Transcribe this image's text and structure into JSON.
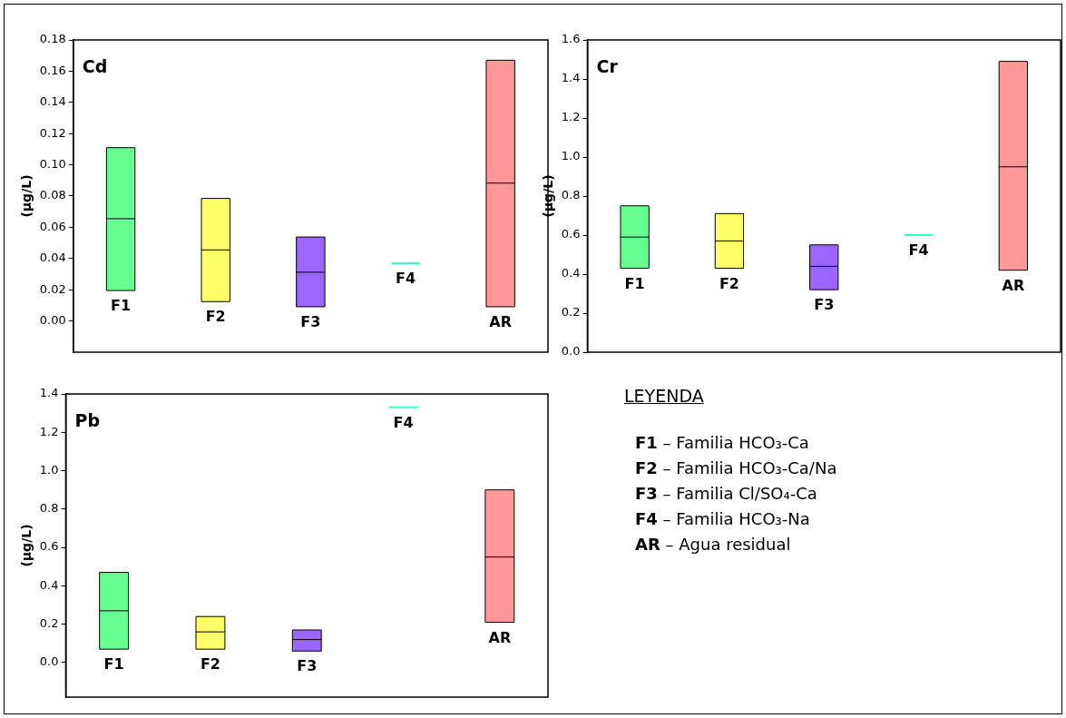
{
  "chart_data": [
    {
      "type": "box",
      "title": "Cd",
      "ylabel": "(µg/L)",
      "categories": [
        "F1",
        "F2",
        "F3",
        "F4",
        "AR"
      ],
      "colors": [
        "#66ff8f",
        "#ffff66",
        "#9966ff",
        "#33ffcc",
        "#ff9999"
      ],
      "boxes": [
        {
          "low": 0.0195,
          "q1": 0.0195,
          "median": 0.0655,
          "q3": 0.111,
          "high": 0.111
        },
        {
          "low": 0.0124,
          "q1": 0.0124,
          "median": 0.0455,
          "q3": 0.0785,
          "high": 0.0785
        },
        {
          "low": 0.0091,
          "q1": 0.0091,
          "median": 0.0312,
          "q3": 0.0538,
          "high": 0.0538
        },
        {
          "low": 0.037,
          "q1": 0.037,
          "median": 0.037,
          "q3": 0.037,
          "high": 0.037
        },
        {
          "low": 0.0091,
          "q1": 0.0091,
          "median": 0.0883,
          "q3": 0.167,
          "high": 0.167
        }
      ],
      "ylim": [
        -0.02,
        0.18
      ],
      "yticks": [
        {
          "value": 0,
          "label": "0.00"
        },
        {
          "value": 0.02,
          "label": "0.02"
        },
        {
          "value": 0.04,
          "label": "0.04"
        },
        {
          "value": 0.06,
          "label": "0.06"
        },
        {
          "value": 0.08,
          "label": "0.08"
        },
        {
          "value": 0.1,
          "label": "0.10"
        },
        {
          "value": 0.12,
          "label": "0.12"
        },
        {
          "value": 0.14,
          "label": "0.14"
        },
        {
          "value": 0.16,
          "label": "0.16"
        },
        {
          "value": 0.18,
          "label": "0.18"
        }
      ],
      "tick_labels": "y",
      "grid": false,
      "legend": false
    },
    {
      "type": "box",
      "title": "Cr",
      "ylabel": "(µg/L)",
      "categories": [
        "F1",
        "F2",
        "F3",
        "F4",
        "AR"
      ],
      "colors": [
        "#66ff8f",
        "#ffff66",
        "#9966ff",
        "#33ffcc",
        "#ff9999"
      ],
      "boxes": [
        {
          "low": 0.43,
          "q1": 0.43,
          "median": 0.59,
          "q3": 0.75,
          "high": 0.75
        },
        {
          "low": 0.43,
          "q1": 0.43,
          "median": 0.57,
          "q3": 0.71,
          "high": 0.71
        },
        {
          "low": 0.32,
          "q1": 0.32,
          "median": 0.44,
          "q3": 0.55,
          "high": 0.55
        },
        {
          "low": 0.6,
          "q1": 0.6,
          "median": 0.6,
          "q3": 0.6,
          "high": 0.6
        },
        {
          "low": 0.42,
          "q1": 0.42,
          "median": 0.95,
          "q3": 1.49,
          "high": 1.49
        }
      ],
      "ylim": [
        0,
        1.6
      ],
      "yticks": [
        {
          "value": 0,
          "label": "0.0"
        },
        {
          "value": 0.2,
          "label": "0.2"
        },
        {
          "value": 0.4,
          "label": "0.4"
        },
        {
          "value": 0.6,
          "label": "0.6"
        },
        {
          "value": 0.8,
          "label": "0.8"
        },
        {
          "value": 1,
          "label": "1.0"
        },
        {
          "value": 1.2,
          "label": "1.2"
        },
        {
          "value": 1.4,
          "label": "1.4"
        },
        {
          "value": 1.6,
          "label": "1.6"
        }
      ],
      "tick_labels": "y",
      "grid": false,
      "legend": false
    },
    {
      "type": "box",
      "title": "Pb",
      "ylabel": "(µg/L)",
      "categories": [
        "F1",
        "F2",
        "F3",
        "F4",
        "AR"
      ],
      "colors": [
        "#66ff8f",
        "#ffff66",
        "#9966ff",
        "#33ffcc",
        "#ff9999"
      ],
      "boxes": [
        {
          "low": 0.07,
          "q1": 0.07,
          "median": 0.27,
          "q3": 0.47,
          "high": 0.47
        },
        {
          "low": 0.07,
          "q1": 0.07,
          "median": 0.16,
          "q3": 0.24,
          "high": 0.24
        },
        {
          "low": 0.06,
          "q1": 0.06,
          "median": 0.12,
          "q3": 0.17,
          "high": 0.17
        },
        {
          "low": 1.33,
          "q1": 1.33,
          "median": 1.33,
          "q3": 1.33,
          "high": 1.33
        },
        {
          "low": 0.21,
          "q1": 0.21,
          "median": 0.55,
          "q3": 0.9,
          "high": 0.9
        }
      ],
      "ylim": [
        -0.18,
        1.4
      ],
      "yticks": [
        {
          "value": 0,
          "label": "0.0"
        },
        {
          "value": 0.2,
          "label": "0.2"
        },
        {
          "value": 0.4,
          "label": "0.4"
        },
        {
          "value": 0.6,
          "label": "0.6"
        },
        {
          "value": 0.8,
          "label": "0.8"
        },
        {
          "value": 1,
          "label": "1.0"
        },
        {
          "value": 1.2,
          "label": "1.2"
        },
        {
          "value": 1.4,
          "label": "1.4"
        }
      ],
      "tick_labels": "y",
      "grid": false,
      "legend": false
    },
    {
      "type": "other",
      "title": "LEYENDA",
      "annotations": [
        "F1 – Familia HCO₃-Ca",
        "F2 – Familia HCO₃-Ca/Na",
        "F3 – Familia Cl/SO₄-Ca",
        "F4 – Familia HCO₃-Na",
        "AR – Agua residual"
      ]
    }
  ]
}
